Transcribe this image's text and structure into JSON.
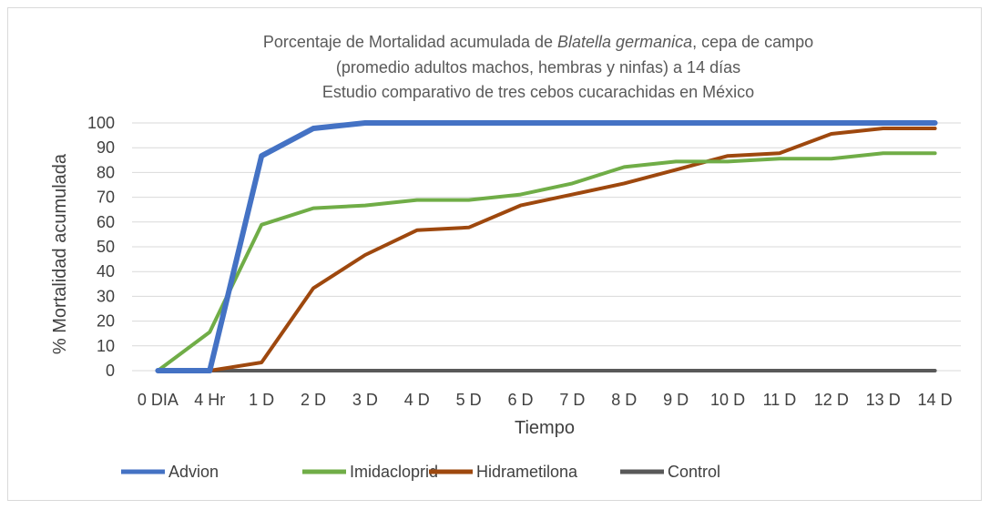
{
  "chart_data": {
    "type": "line",
    "title_lines": {
      "line1_before": "Porcentaje de Mortalidad acumulada de ",
      "line1_italic": "Blatella germanica",
      "line1_after": ", cepa de campo",
      "line2": "(promedio adultos machos, hembras y ninfas)  a 14 días",
      "line3": "Estudio comparativo de tres cebos cucarachidas en México"
    },
    "xlabel": "Tiempo",
    "ylabel": "% Mortalidad acumulada",
    "categories": [
      "0 DIA",
      "4 Hr",
      "1 D",
      "2 D",
      "3 D",
      "4 D",
      "5 D",
      "6 D",
      "7 D",
      "8 D",
      "9 D",
      "10 D",
      "11 D",
      "12 D",
      "13 D",
      "14 D"
    ],
    "ylim": [
      0,
      100
    ],
    "yticks": [
      0,
      10,
      20,
      30,
      40,
      50,
      60,
      70,
      80,
      90,
      100
    ],
    "grid": true,
    "legend_position": "bottom",
    "series": [
      {
        "name": "Advion",
        "color": "#4472C4",
        "values": [
          0,
          0,
          86.7,
          97.8,
          100,
          100,
          100,
          100,
          100,
          100,
          100,
          100,
          100,
          100,
          100,
          100
        ]
      },
      {
        "name": "Imidacloprid",
        "color": "#70AD47",
        "values": [
          0,
          15.6,
          58.9,
          65.6,
          66.7,
          68.9,
          68.9,
          71.1,
          75.6,
          82.2,
          84.4,
          84.4,
          85.6,
          85.6,
          87.8,
          87.8
        ]
      },
      {
        "name": "Hidrametilona",
        "color": "#9E480E",
        "values": [
          0,
          0,
          3.3,
          33.3,
          46.7,
          56.7,
          57.8,
          66.7,
          71.1,
          75.6,
          81.1,
          86.7,
          87.8,
          95.6,
          97.8,
          97.8
        ]
      },
      {
        "name": "Control",
        "color": "#595959",
        "values": [
          0,
          0,
          0,
          0,
          0,
          0,
          0,
          0,
          0,
          0,
          0,
          0,
          0,
          0,
          0,
          0
        ]
      }
    ]
  }
}
